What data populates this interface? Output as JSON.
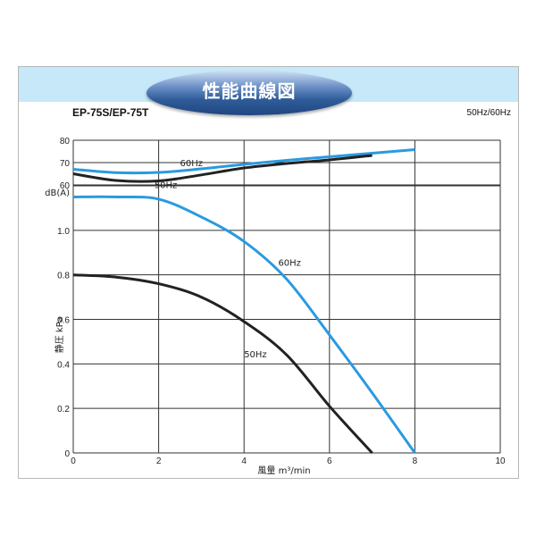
{
  "title": "性能曲線図",
  "model": "EP-75S/EP-75T",
  "frequency_note": "50Hz/60Hz",
  "chart_data": [
    {
      "type": "line",
      "ylabel": "dB(A)",
      "ylim": [
        60,
        80
      ],
      "yticks": [
        60,
        70,
        80
      ],
      "xlim": [
        0,
        10
      ],
      "grid": true,
      "series": [
        {
          "name": "60Hz",
          "color": "#2a9ae0",
          "points": [
            [
              0,
              67
            ],
            [
              1,
              65.5
            ],
            [
              2,
              65.6
            ],
            [
              3,
              67.2
            ],
            [
              4,
              69.2
            ],
            [
              5,
              71
            ],
            [
              6,
              72.6
            ],
            [
              7,
              74.2
            ],
            [
              8,
              75.8
            ]
          ]
        },
        {
          "name": "50Hz",
          "color": "#222222",
          "points": [
            [
              0,
              65
            ],
            [
              1,
              62
            ],
            [
              2,
              61.8
            ],
            [
              3,
              64.5
            ],
            [
              4,
              67.6
            ],
            [
              5,
              69.6
            ],
            [
              6,
              71.2
            ],
            [
              7,
              73.2
            ]
          ]
        }
      ]
    },
    {
      "type": "line",
      "xlabel": "風量 m³/min",
      "ylabel": "静圧 kPa",
      "xlim": [
        0,
        10
      ],
      "ylim": [
        0,
        1.2
      ],
      "xticks": [
        0,
        2,
        4,
        6,
        8,
        10
      ],
      "yticks": [
        0,
        0.2,
        0.4,
        0.6,
        0.8,
        1.0
      ],
      "grid": true,
      "series": [
        {
          "name": "60Hz",
          "color": "#2a9ae0",
          "points": [
            [
              0,
              1.15
            ],
            [
              1,
              1.15
            ],
            [
              2,
              1.14
            ],
            [
              3,
              1.06
            ],
            [
              4,
              0.95
            ],
            [
              5,
              0.78
            ],
            [
              6,
              0.53
            ],
            [
              7,
              0.27
            ],
            [
              8,
              0
            ]
          ]
        },
        {
          "name": "50Hz",
          "color": "#222222",
          "points": [
            [
              0,
              0.8
            ],
            [
              1,
              0.79
            ],
            [
              2,
              0.76
            ],
            [
              3,
              0.7
            ],
            [
              4,
              0.59
            ],
            [
              5,
              0.44
            ],
            [
              6,
              0.21
            ],
            [
              7,
              0
            ]
          ]
        }
      ]
    }
  ]
}
